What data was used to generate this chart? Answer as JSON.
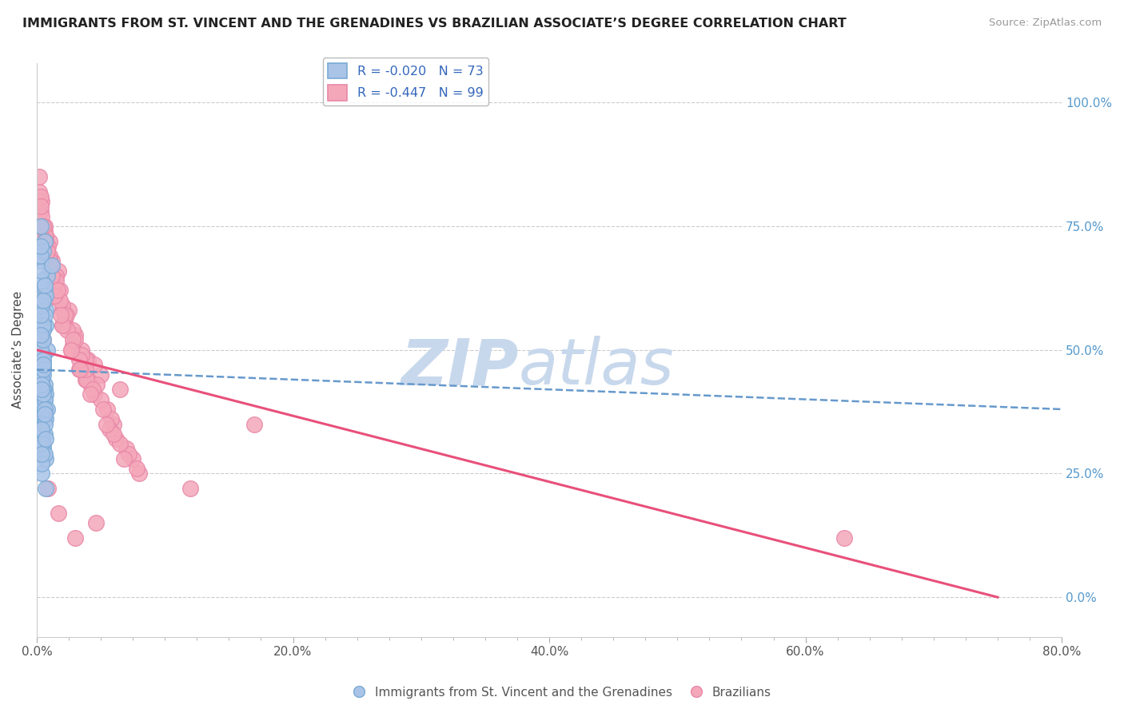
{
  "title": "IMMIGRANTS FROM ST. VINCENT AND THE GRENADINES VS BRAZILIAN ASSOCIATE’S DEGREE CORRELATION CHART",
  "source": "Source: ZipAtlas.com",
  "ylabel": "Associate’s Degree",
  "y_tick_labels": [
    "0.0%",
    "25.0%",
    "50.0%",
    "75.0%",
    "100.0%"
  ],
  "y_tick_values": [
    0,
    25,
    50,
    75,
    100
  ],
  "x_tick_labels": [
    "0.0%",
    "",
    "",
    "",
    "",
    "",
    "",
    "",
    "20.0%",
    "",
    "",
    "",
    "",
    "",
    "",
    "",
    "40.0%",
    "",
    "",
    "",
    "",
    "",
    "",
    "",
    "60.0%",
    "",
    "",
    "",
    "",
    "",
    "",
    "",
    "80.0%"
  ],
  "x_tick_values": [
    0,
    2.5,
    5,
    7.5,
    10,
    12.5,
    15,
    17.5,
    20,
    22.5,
    25,
    27.5,
    30,
    32.5,
    35,
    37.5,
    40,
    42.5,
    45,
    47.5,
    50,
    52.5,
    55,
    57.5,
    60,
    62.5,
    65,
    67.5,
    70,
    72.5,
    75,
    77.5,
    80
  ],
  "xlim": [
    0,
    80
  ],
  "ylim": [
    -8,
    108
  ],
  "legend_blue_label": "R = -0.020   N = 73",
  "legend_pink_label": "R = -0.447   N = 99",
  "blue_color": "#aac4e8",
  "pink_color": "#f4a7b9",
  "blue_edge": "#7aaad4",
  "pink_edge": "#e888a8",
  "trend_blue_color": "#6699cc",
  "trend_pink_color": "#e8507a",
  "watermark_zip": "ZIP",
  "watermark_atlas": "atlas",
  "watermark_color": "#c8d8ec",
  "blue_scatter_x": [
    0.3,
    0.5,
    0.4,
    0.6,
    0.8,
    0.7,
    0.5,
    0.4,
    0.6,
    0.3,
    0.5,
    0.4,
    0.7,
    0.6,
    0.5,
    0.8,
    0.4,
    0.3,
    0.6,
    0.7,
    0.5,
    0.4,
    0.6,
    0.5,
    0.7,
    0.4,
    0.5,
    0.3,
    0.6,
    0.5,
    0.4,
    0.7,
    0.5,
    0.4,
    0.6,
    0.5,
    0.4,
    0.7,
    0.5,
    0.6,
    0.8,
    0.4,
    0.5,
    0.6,
    0.4,
    0.5,
    0.6,
    0.3,
    0.5,
    0.7,
    0.5,
    0.4,
    0.6,
    0.5,
    0.4,
    0.3,
    0.6,
    0.5,
    0.4,
    0.5,
    0.4,
    0.3,
    0.5,
    1.2,
    0.7,
    0.3,
    0.4,
    0.6,
    0.5,
    0.4,
    0.3,
    0.3,
    0.4
  ],
  "blue_scatter_y": [
    43,
    47,
    52,
    40,
    50,
    55,
    38,
    45,
    42,
    48,
    60,
    35,
    58,
    72,
    30,
    65,
    44,
    68,
    33,
    41,
    56,
    37,
    62,
    49,
    28,
    53,
    46,
    39,
    57,
    31,
    64,
    36,
    70,
    25,
    43,
    47,
    33,
    61,
    54,
    40,
    38,
    66,
    42,
    29,
    59,
    45,
    35,
    50,
    48,
    22,
    55,
    34,
    63,
    41,
    27,
    69,
    38,
    52,
    44,
    46,
    31,
    57,
    60,
    67,
    32,
    75,
    43,
    37,
    47,
    42,
    53,
    71,
    29
  ],
  "pink_scatter_x": [
    0.5,
    0.8,
    1.5,
    2.0,
    3.5,
    5.0,
    2.5,
    1.8,
    4.0,
    6.5,
    0.7,
    1.2,
    3.0,
    4.5,
    1.0,
    2.2,
    3.8,
    5.5,
    0.3,
    0.6,
    1.3,
    2.0,
    3.5,
    6.0,
    1.7,
    2.8,
    4.2,
    7.0,
    0.4,
    1.0,
    1.5,
    2.8,
    4.5,
    7.5,
    0.7,
    1.4,
    2.3,
    3.8,
    5.8,
    0.2,
    0.9,
    1.5,
    2.7,
    4.0,
    6.2,
    1.1,
    2.0,
    3.3,
    5.0,
    8.0,
    0.6,
    1.3,
    2.1,
    3.5,
    5.7,
    0.4,
    1.0,
    1.8,
    3.0,
    4.7,
    7.2,
    0.8,
    1.3,
    2.4,
    3.9,
    6.5,
    0.3,
    0.7,
    1.5,
    2.8,
    4.4,
    7.8,
    1.2,
    2.2,
    3.8,
    6.0,
    0.5,
    1.4,
    2.0,
    3.3,
    5.2,
    0.3,
    0.7,
    1.6,
    2.7,
    4.2,
    6.8,
    1.0,
    1.9,
    3.4,
    5.4,
    0.2,
    0.9,
    1.7,
    3.0,
    4.6,
    63.0,
    17.0,
    12.0
  ],
  "pink_scatter_y": [
    52,
    70,
    65,
    55,
    50,
    45,
    58,
    62,
    48,
    42,
    60,
    68,
    53,
    47,
    72,
    56,
    44,
    38,
    78,
    75,
    64,
    58,
    46,
    35,
    66,
    51,
    43,
    30,
    80,
    69,
    61,
    54,
    41,
    28,
    73,
    63,
    57,
    48,
    36,
    82,
    71,
    65,
    50,
    44,
    32,
    67,
    59,
    46,
    40,
    25,
    74,
    62,
    55,
    49,
    34,
    77,
    68,
    60,
    52,
    43,
    29,
    70,
    63,
    54,
    44,
    31,
    81,
    73,
    64,
    52,
    42,
    26,
    65,
    57,
    46,
    33,
    75,
    61,
    55,
    48,
    38,
    79,
    72,
    62,
    50,
    41,
    28,
    67,
    57,
    46,
    35,
    85,
    22,
    17,
    12,
    15,
    12,
    35,
    22
  ],
  "blue_trend": {
    "x_start": 0,
    "x_end": 80,
    "y_start": 46,
    "y_end": 38
  },
  "pink_trend": {
    "x_start": 0,
    "x_end": 75,
    "y_start": 50,
    "y_end": 0
  }
}
